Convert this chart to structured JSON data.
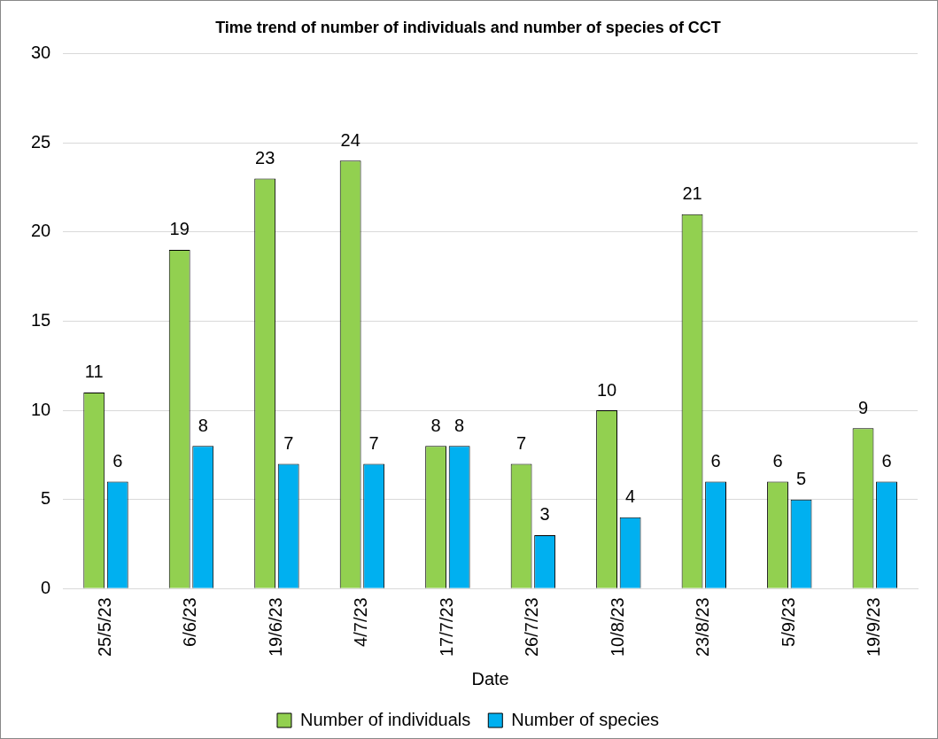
{
  "chart_data": {
    "type": "bar",
    "title": "Time trend of number of individuals and number of species of CCT",
    "xlabel": "Date",
    "categories": [
      "25/5/23",
      "6/6/23",
      "19/6/23",
      "4/7/23",
      "17/7/23",
      "26/7/23",
      "10/8/23",
      "23/8/23",
      "5/9/23",
      "19/9/23"
    ],
    "series": [
      {
        "name": "Number of individuals",
        "color": "#92d050",
        "values": [
          11,
          19,
          23,
          24,
          8,
          7,
          10,
          21,
          6,
          9
        ]
      },
      {
        "name": "Number of species",
        "color": "#00b0f0",
        "values": [
          6,
          8,
          7,
          7,
          8,
          3,
          4,
          6,
          5,
          6
        ]
      }
    ],
    "ylim": [
      0,
      30
    ],
    "yticks": [
      0,
      5,
      10,
      15,
      20,
      25,
      30
    ],
    "grid": "y",
    "legend": "bottom",
    "data_labels": true
  }
}
